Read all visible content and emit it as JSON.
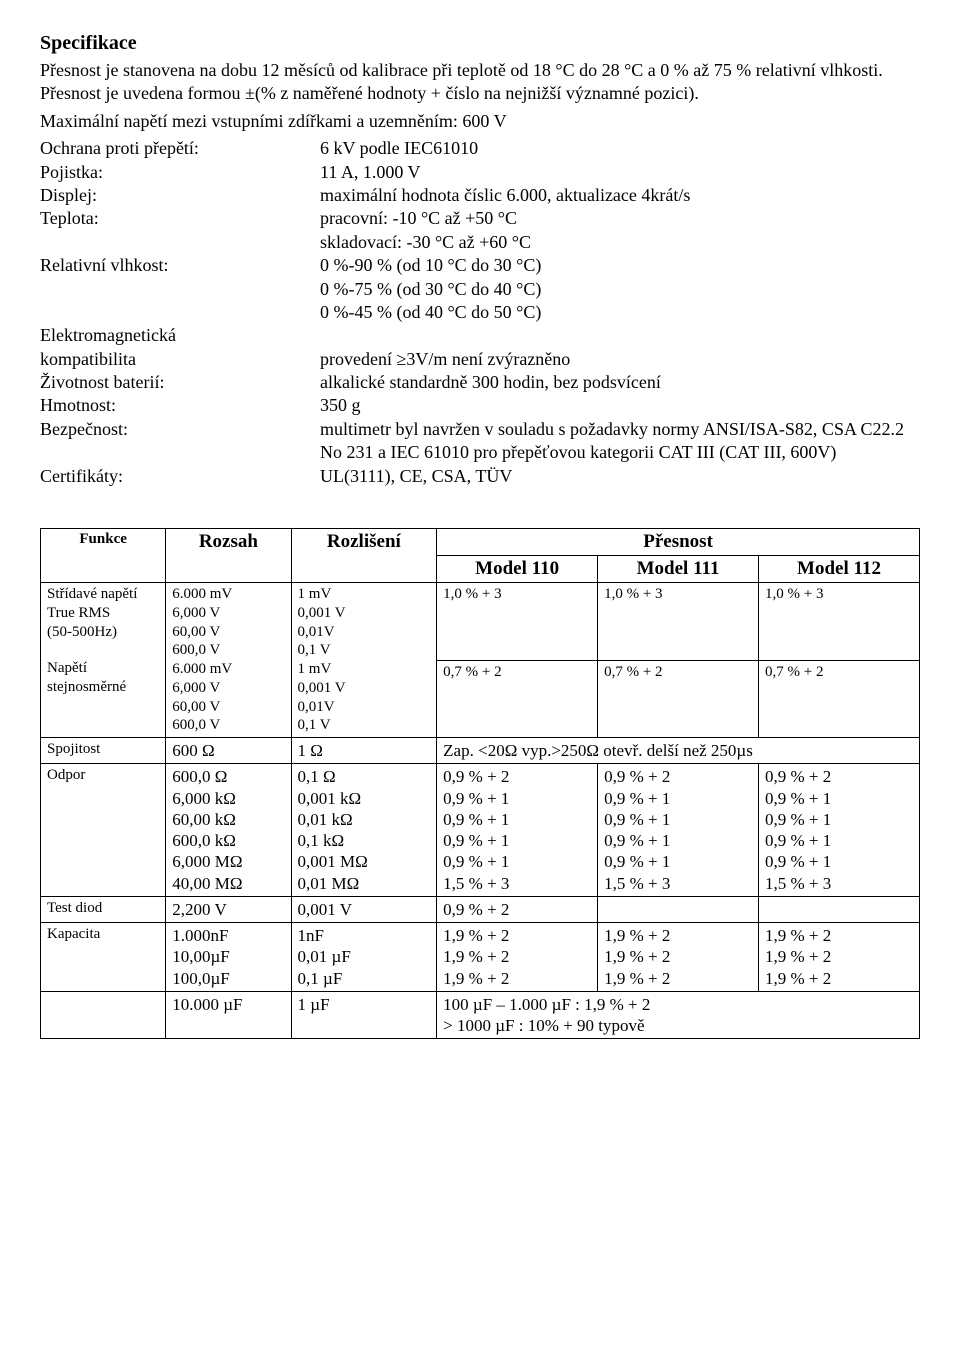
{
  "heading": "Specifikace",
  "intro1": "Přesnost je stanovena na dobu 12 měsíců od kalibrace při teplotě od 18 °C do 28 °C a 0 % až 75 % relativní vlhkosti. Přesnost je uvedena formou ±(% z naměřené hodnoty + číslo na nejnižší významné pozici).",
  "intro2": "Maximální napětí mezi vstupními zdířkami a uzemněním: 600 V",
  "specs": [
    {
      "label": "Ochrana proti přepětí:",
      "value": [
        "6 kV podle IEC61010"
      ]
    },
    {
      "label": "Pojistka:",
      "value": [
        "11 A, 1.000 V"
      ]
    },
    {
      "label": "Displej:",
      "value": [
        "maximální hodnota číslic 6.000, aktualizace 4krát/s"
      ]
    },
    {
      "label": "Teplota:",
      "value": [
        "pracovní: -10 °C až +50 °C",
        "skladovací: -30 °C až +60 °C"
      ]
    },
    {
      "label": "Relativní vlhkost:",
      "value": [
        "0 %-90 % (od 10 °C do 30 °C)",
        "0 %-75 % (od 30 °C do 40 °C)",
        "0 %-45 % (od 40 °C do 50 °C)"
      ]
    },
    {
      "label": "Elektromagnetická",
      "value": [
        ""
      ]
    },
    {
      "label": "kompatibilita",
      "value": [
        "provedení ≥3V/m není zvýrazněno"
      ]
    },
    {
      "label": "Životnost baterií:",
      "value": [
        "alkalické standardně 300 hodin, bez podsvícení"
      ]
    },
    {
      "label": "Hmotnost:",
      "value": [
        "350 g"
      ]
    },
    {
      "label": "Bezpečnost:",
      "value": [
        "multimetr byl navržen v souladu s požadavky normy ANSI/ISA-S82, CSA C22.2",
        "No 231 a IEC 61010 pro přepěťovou kategorii CAT III (CAT III, 600V)"
      ]
    },
    {
      "label": "Certifikáty:",
      "value": [
        "UL(3111), CE, CSA, TÜV"
      ]
    }
  ],
  "table": {
    "headers": {
      "fn": "Funkce",
      "range": "Rozsah",
      "res": "Rozlišení",
      "acc": "Přesnost",
      "m110": "Model 110",
      "m111": "Model 111",
      "m112": "Model 112"
    },
    "rows": [
      {
        "fn": [
          "Střídavé napětí",
          "True RMS",
          "(50-500Hz)"
        ],
        "range": [
          "6.000 mV",
          "6,000 V",
          "60,00 V",
          "600,0 V"
        ],
        "res": [
          "1 mV",
          "0,001 V",
          "0,01V",
          "0,1 V"
        ],
        "m110": "1,0 % + 3",
        "m111": "1,0 % + 3",
        "m112": "1,0 % + 3"
      },
      {
        "fn": [
          "Napětí",
          "stejnosměrné"
        ],
        "range": [
          "6.000 mV",
          "6,000 V",
          "60,00 V",
          "600,0 V"
        ],
        "res": [
          "1 mV",
          "0,001 V",
          "0,01V",
          "0,1 V"
        ],
        "m110": "0,7 % + 2",
        "m111": "0,7 % + 2",
        "m112": "0,7 % + 2"
      },
      {
        "fn": [
          "Spojitost"
        ],
        "range": [
          "600 Ω"
        ],
        "res": [
          "1 Ω"
        ],
        "span": "Zap. <20Ω vyp.>250Ω otevř. delší než 250µs"
      },
      {
        "fn": [
          "Odpor"
        ],
        "range": [
          "600,0 Ω",
          "6,000 kΩ",
          "60,00 kΩ",
          "600,0 kΩ",
          "6,000 MΩ",
          "40,00 MΩ"
        ],
        "res": [
          "0,1 Ω",
          "0,001 kΩ",
          "0,01 kΩ",
          "0,1 kΩ",
          "0,001 MΩ",
          "0,01 MΩ"
        ],
        "m110": [
          "0,9 % + 2",
          "0,9 % + 1",
          "0,9 % + 1",
          "0,9 % + 1",
          "0,9 % + 1",
          "1,5 % + 3"
        ],
        "m111": [
          "0,9 % + 2",
          "0,9 % + 1",
          "0,9 % + 1",
          "0,9 % + 1",
          "0,9 % + 1",
          "1,5 % + 3"
        ],
        "m112": [
          "0,9 % + 2",
          "0,9 % + 1",
          "0,9 % + 1",
          "0,9 % + 1",
          "0,9 % + 1",
          "1,5 % + 3"
        ]
      },
      {
        "fn": [
          "Test diod"
        ],
        "range": [
          "2,200 V"
        ],
        "res": [
          "0,001 V"
        ],
        "m110": "0,9 % + 2",
        "m111": "",
        "m112": ""
      },
      {
        "fn": [
          "Kapacita"
        ],
        "range": [
          "1.000nF",
          "10,00µF",
          "100,0µF"
        ],
        "res": [
          "1nF",
          "0,01 µF",
          "0,1 µF"
        ],
        "m110": [
          "1,9 % + 2",
          "1,9 % + 2",
          "1,9 % + 2"
        ],
        "m111": [
          "1,9 % + 2",
          "1,9 % + 2",
          "1,9 % + 2"
        ],
        "m112": [
          "1,9 % + 2",
          "1,9 % + 2",
          "1,9 % + 2"
        ]
      },
      {
        "fn": [
          ""
        ],
        "range": [
          "10.000 µF"
        ],
        "res": [
          "1 µF"
        ],
        "span": "100 µF – 1.000 µF : 1,9 % + 2\n> 1000 µF : 10% + 90 typově"
      }
    ]
  }
}
